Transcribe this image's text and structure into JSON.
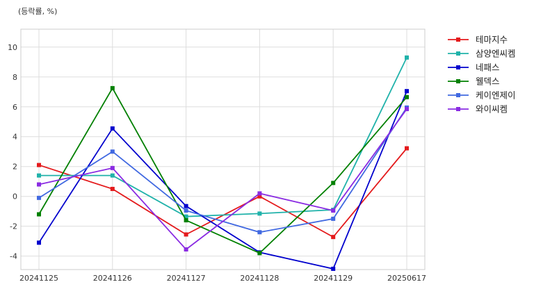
{
  "chart_data": {
    "type": "line",
    "unit_label": "(등락률, %)",
    "categories": [
      "20241125",
      "20241126",
      "20241127",
      "20241128",
      "20241129",
      "20250617"
    ],
    "ylim": [
      -4.9,
      11.2
    ],
    "yticks": [
      -4,
      -2,
      0,
      2,
      4,
      6,
      8,
      10
    ],
    "grid": true,
    "legend_position": "top-right, outside plot",
    "series": [
      {
        "name": "테마지수",
        "color": "#e41a1c",
        "values": [
          2.1,
          0.5,
          -2.55,
          0.0,
          -2.72,
          3.22
        ]
      },
      {
        "name": "삼양엔씨켐",
        "color": "#20b2aa",
        "values": [
          1.4,
          1.4,
          -1.35,
          -1.15,
          -0.9,
          9.3
        ]
      },
      {
        "name": "네패스",
        "color": "#0000cd",
        "values": [
          -3.1,
          4.55,
          -0.65,
          -3.75,
          -4.85,
          7.05
        ]
      },
      {
        "name": "웰덱스",
        "color": "#008000",
        "values": [
          -1.2,
          7.25,
          -1.6,
          -3.8,
          0.9,
          6.65
        ]
      },
      {
        "name": "케이엔제이",
        "color": "#4169e1",
        "values": [
          -0.1,
          3.0,
          -0.95,
          -2.4,
          -1.5,
          5.95
        ]
      },
      {
        "name": "와이씨켐",
        "color": "#8a2be2",
        "values": [
          0.8,
          1.9,
          -3.55,
          0.2,
          -0.95,
          5.85
        ]
      }
    ]
  }
}
